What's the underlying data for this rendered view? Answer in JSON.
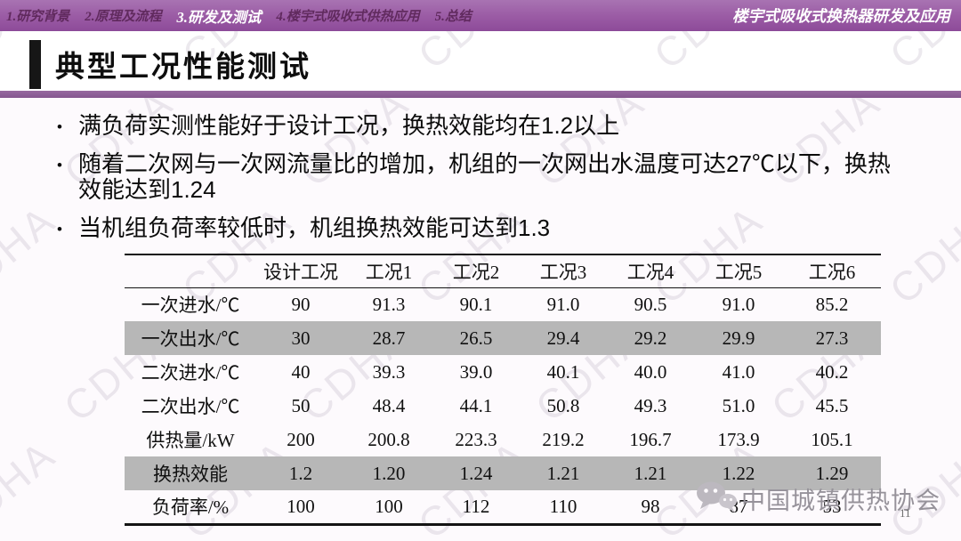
{
  "topbar": {
    "items": [
      {
        "label": "1.研究背景",
        "active": false
      },
      {
        "label": "2.原理及流程",
        "active": false
      },
      {
        "label": "3.研发及测试",
        "active": true
      },
      {
        "label": "4.楼宇式吸收式供热应用",
        "active": false
      },
      {
        "label": "5.总结",
        "active": false
      }
    ],
    "right_title": "楼宇式吸收式换热器研发及应用"
  },
  "title": "典型工况性能测试",
  "bullets": [
    "满负荷实测性能好于设计工况，换热效能均在1.2以上",
    "随着二次网与一次网流量比的增加，机组的一次网出水温度可达27℃以下，换热效能达到1.24",
    "当机组负荷率较低时，机组换热效能可达到1.3"
  ],
  "table": {
    "headers": [
      "",
      "设计工况",
      "工况1",
      "工况2",
      "工况3",
      "工况4",
      "工况5",
      "工况6"
    ],
    "rows": [
      {
        "label": "一次进水/℃",
        "values": [
          "90",
          "91.3",
          "90.1",
          "91.0",
          "90.5",
          "91.0",
          "85.2"
        ],
        "shaded": false
      },
      {
        "label": "一次出水/℃",
        "values": [
          "30",
          "28.7",
          "26.5",
          "29.4",
          "29.2",
          "29.9",
          "27.3"
        ],
        "shaded": true
      },
      {
        "label": "二次进水/℃",
        "values": [
          "40",
          "39.3",
          "39.0",
          "40.1",
          "40.0",
          "41.0",
          "40.2"
        ],
        "shaded": false
      },
      {
        "label": "二次出水/℃",
        "values": [
          "50",
          "48.4",
          "44.1",
          "50.8",
          "49.3",
          "51.0",
          "45.5"
        ],
        "shaded": false
      },
      {
        "label": "供热量/kW",
        "values": [
          "200",
          "200.8",
          "223.3",
          "219.2",
          "196.7",
          "173.9",
          "105.1"
        ],
        "shaded": false
      },
      {
        "label": "换热效能",
        "values": [
          "1.2",
          "1.20",
          "1.24",
          "1.21",
          "1.21",
          "1.22",
          "1.29"
        ],
        "shaded": true
      },
      {
        "label": "负荷率/%",
        "values": [
          "100",
          "100",
          "112",
          "110",
          "98",
          "87",
          "53"
        ],
        "shaded": false
      }
    ]
  },
  "footer": {
    "org_name": "中国城镇供热协会",
    "page_number": "11",
    "logo": "wechat-bubbles-icon"
  },
  "watermark_text": "CDHA",
  "colors": {
    "topbar_purple": "#9a5aa4",
    "topbar_purple_light": "#a873b2",
    "divider_purple": "#85578f",
    "shaded_row_gray": "#b7b7b7"
  }
}
